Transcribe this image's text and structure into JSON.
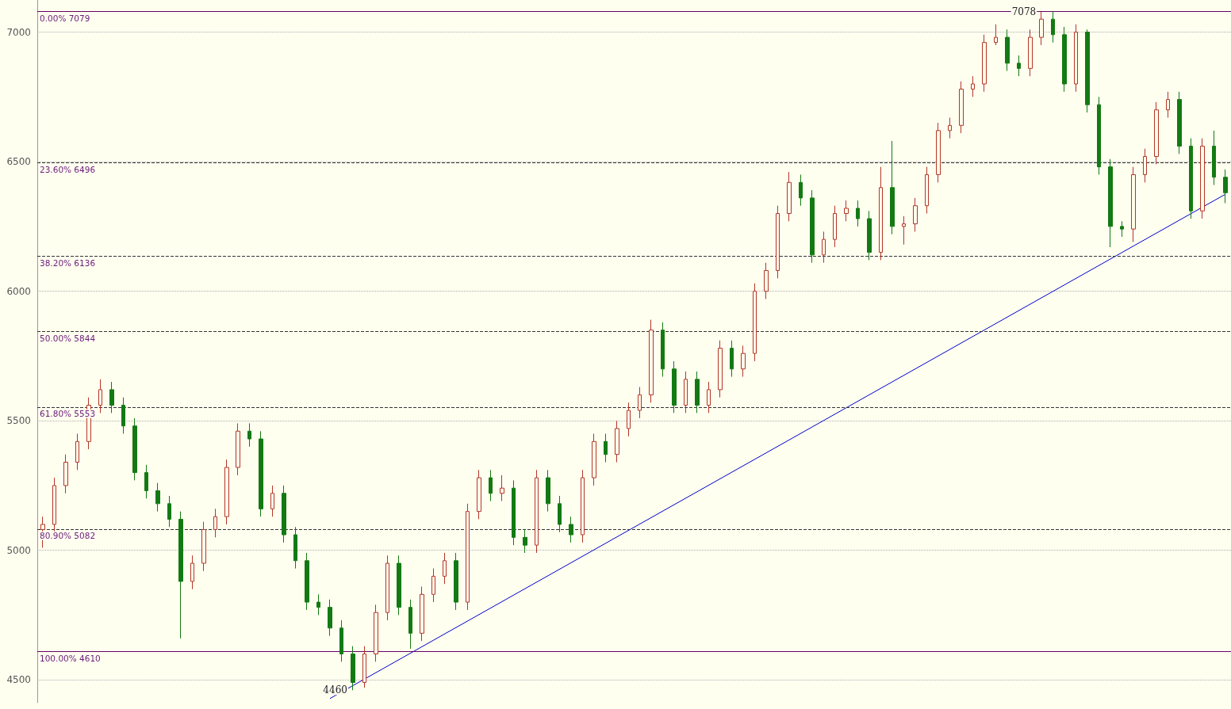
{
  "chart_data": {
    "type": "candlestick",
    "categories": [
      null,
      null,
      null,
      null,
      null,
      null,
      null,
      null,
      null,
      null,
      null,
      null,
      null,
      null,
      null,
      null,
      null,
      null,
      null,
      null,
      null,
      null,
      null,
      null,
      null,
      null,
      null,
      null,
      null,
      null,
      null,
      null,
      null,
      null,
      null,
      null,
      null,
      null,
      null,
      null,
      null,
      null,
      null,
      null,
      null,
      null,
      null,
      null,
      null,
      null,
      null,
      null,
      null,
      null,
      null,
      null,
      null,
      null,
      null,
      null,
      null,
      null,
      null,
      null,
      null,
      null,
      null,
      null,
      null,
      null,
      null,
      null,
      null,
      null,
      null,
      null,
      null,
      null,
      null,
      null,
      null,
      null,
      null,
      null,
      null,
      null,
      null,
      null,
      null,
      null,
      null,
      null,
      null,
      null,
      null,
      null,
      null,
      null,
      null,
      null,
      null,
      null,
      null,
      null
    ],
    "ohlc": [
      [
        5080,
        5130,
        5010,
        5100
      ],
      [
        5100,
        5280,
        5070,
        5250
      ],
      [
        5250,
        5370,
        5220,
        5340
      ],
      [
        5340,
        5450,
        5310,
        5420
      ],
      [
        5420,
        5590,
        5390,
        5560
      ],
      [
        5560,
        5660,
        5530,
        5620
      ],
      [
        5620,
        5650,
        5530,
        5560
      ],
      [
        5560,
        5590,
        5450,
        5480
      ],
      [
        5480,
        5510,
        5270,
        5300
      ],
      [
        5300,
        5330,
        5200,
        5230
      ],
      [
        5230,
        5260,
        5150,
        5180
      ],
      [
        5180,
        5210,
        5090,
        5120
      ],
      [
        5120,
        5150,
        4660,
        4880
      ],
      [
        4880,
        4980,
        4850,
        4950
      ],
      [
        4950,
        5110,
        4920,
        5080
      ],
      [
        5080,
        5160,
        5050,
        5130
      ],
      [
        5130,
        5350,
        5100,
        5320
      ],
      [
        5320,
        5490,
        5290,
        5460
      ],
      [
        5460,
        5490,
        5400,
        5430
      ],
      [
        5430,
        5460,
        5130,
        5160
      ],
      [
        5160,
        5250,
        5130,
        5220
      ],
      [
        5220,
        5250,
        5030,
        5060
      ],
      [
        5060,
        5090,
        4930,
        4960
      ],
      [
        4960,
        4990,
        4770,
        4800
      ],
      [
        4800,
        4830,
        4750,
        4780
      ],
      [
        4780,
        4810,
        4670,
        4700
      ],
      [
        4700,
        4730,
        4570,
        4600
      ],
      [
        4600,
        4630,
        4460,
        4490
      ],
      [
        4490,
        4630,
        4470,
        4600
      ],
      [
        4600,
        4790,
        4570,
        4760
      ],
      [
        4760,
        4980,
        4730,
        4950
      ],
      [
        4950,
        4980,
        4750,
        4780
      ],
      [
        4780,
        4810,
        4620,
        4680
      ],
      [
        4680,
        4860,
        4650,
        4830
      ],
      [
        4830,
        4930,
        4800,
        4900
      ],
      [
        4900,
        4990,
        4870,
        4960
      ],
      [
        4960,
        4990,
        4770,
        4800
      ],
      [
        4800,
        5180,
        4770,
        5150
      ],
      [
        5150,
        5310,
        5120,
        5280
      ],
      [
        5280,
        5310,
        5190,
        5220
      ],
      [
        5220,
        5290,
        5190,
        5240
      ],
      [
        5240,
        5270,
        5020,
        5050
      ],
      [
        5050,
        5080,
        4990,
        5020
      ],
      [
        5020,
        5310,
        4990,
        5280
      ],
      [
        5280,
        5310,
        5150,
        5180
      ],
      [
        5180,
        5210,
        5070,
        5100
      ],
      [
        5100,
        5130,
        5030,
        5060
      ],
      [
        5060,
        5310,
        5030,
        5280
      ],
      [
        5280,
        5450,
        5250,
        5420
      ],
      [
        5420,
        5450,
        5340,
        5370
      ],
      [
        5370,
        5500,
        5340,
        5470
      ],
      [
        5470,
        5570,
        5440,
        5540
      ],
      [
        5540,
        5630,
        5510,
        5600
      ],
      [
        5600,
        5890,
        5570,
        5850
      ],
      [
        5850,
        5880,
        5670,
        5700
      ],
      [
        5700,
        5730,
        5530,
        5560
      ],
      [
        5560,
        5690,
        5530,
        5660
      ],
      [
        5660,
        5690,
        5530,
        5560
      ],
      [
        5560,
        5650,
        5530,
        5620
      ],
      [
        5620,
        5810,
        5590,
        5780
      ],
      [
        5780,
        5810,
        5670,
        5700
      ],
      [
        5700,
        5790,
        5670,
        5760
      ],
      [
        5760,
        6030,
        5730,
        6000
      ],
      [
        6000,
        6110,
        5970,
        6080
      ],
      [
        6080,
        6330,
        6050,
        6300
      ],
      [
        6300,
        6460,
        6270,
        6420
      ],
      [
        6420,
        6450,
        6330,
        6360
      ],
      [
        6360,
        6390,
        6110,
        6140
      ],
      [
        6140,
        6230,
        6110,
        6200
      ],
      [
        6200,
        6330,
        6170,
        6300
      ],
      [
        6300,
        6350,
        6270,
        6320
      ],
      [
        6320,
        6350,
        6250,
        6280
      ],
      [
        6280,
        6310,
        6120,
        6150
      ],
      [
        6150,
        6480,
        6120,
        6400
      ],
      [
        6400,
        6580,
        6220,
        6250
      ],
      [
        6250,
        6290,
        6180,
        6260
      ],
      [
        6260,
        6360,
        6230,
        6330
      ],
      [
        6330,
        6480,
        6300,
        6450
      ],
      [
        6450,
        6650,
        6420,
        6620
      ],
      [
        6620,
        6670,
        6590,
        6640
      ],
      [
        6640,
        6810,
        6610,
        6780
      ],
      [
        6780,
        6830,
        6750,
        6800
      ],
      [
        6800,
        6990,
        6770,
        6960
      ],
      [
        6960,
        7030,
        6950,
        6980
      ],
      [
        6980,
        7010,
        6850,
        6880
      ],
      [
        6880,
        6910,
        6830,
        6860
      ],
      [
        6860,
        7010,
        6830,
        6980
      ],
      [
        6980,
        7078,
        6950,
        7050
      ],
      [
        7050,
        7080,
        6960,
        6990
      ],
      [
        6990,
        7020,
        6770,
        6800
      ],
      [
        6800,
        7030,
        6770,
        7000
      ],
      [
        7000,
        7010,
        6690,
        6720
      ],
      [
        6720,
        6750,
        6450,
        6480
      ],
      [
        6480,
        6510,
        6170,
        6250
      ],
      [
        6250,
        6270,
        6210,
        6240
      ],
      [
        6240,
        6480,
        6190,
        6450
      ],
      [
        6450,
        6550,
        6420,
        6520
      ],
      [
        6520,
        6730,
        6490,
        6700
      ],
      [
        6700,
        6770,
        6670,
        6740
      ],
      [
        6740,
        6770,
        6530,
        6560
      ],
      [
        6560,
        6590,
        6280,
        6310
      ],
      [
        6310,
        6590,
        6280,
        6560
      ],
      [
        6560,
        6620,
        6410,
        6440
      ],
      [
        6440,
        6470,
        6340,
        6380
      ]
    ],
    "series": [
      {
        "type": "line",
        "values": [
          null,
          null,
          null,
          null,
          null,
          null,
          null,
          null,
          null,
          null,
          null,
          null,
          null,
          null,
          null,
          null,
          null,
          null,
          null,
          null,
          null,
          null,
          null,
          null,
          null,
          4428,
          null,
          null,
          null,
          null,
          null,
          null,
          null,
          null,
          null,
          null,
          null,
          null,
          null,
          null,
          null,
          null,
          null,
          null,
          null,
          null,
          null,
          null,
          null,
          null,
          null,
          null,
          null,
          null,
          null,
          null,
          null,
          null,
          null,
          null,
          null,
          null,
          null,
          null,
          null,
          null,
          null,
          null,
          null,
          null,
          null,
          null,
          null,
          null,
          null,
          null,
          null,
          null,
          null,
          null,
          null,
          null,
          null,
          null,
          null,
          null,
          null,
          null,
          null,
          null,
          null,
          null,
          null,
          null,
          null,
          null,
          null,
          null,
          null,
          null,
          null,
          null,
          null,
          6374
        ],
        "color": "#0000cc"
      }
    ],
    "ylim": [
      4412,
      7124
    ],
    "yticks": [
      4500,
      5000,
      5500,
      6000,
      6500,
      7000
    ],
    "grid": "y",
    "ref_lines": [
      {
        "axis": "y",
        "value": 7079,
        "label": "0.00% 7079",
        "color": "#660066",
        "line_style": "solid"
      },
      {
        "axis": "y",
        "value": 6496,
        "label": "23.60% 6496",
        "color": "#333333",
        "line_style": "dashed"
      },
      {
        "axis": "y",
        "value": 6136,
        "label": "38.20% 6136",
        "color": "#333333",
        "line_style": "dashed"
      },
      {
        "axis": "y",
        "value": 5844,
        "label": "50.00% 5844",
        "color": "#333333",
        "line_style": "dashed"
      },
      {
        "axis": "y",
        "value": 5553,
        "label": "61.80% 5553",
        "color": "#333333",
        "line_style": "dashed"
      },
      {
        "axis": "y",
        "value": 5082,
        "label": "80.90% 5082",
        "color": "#333333",
        "line_style": "dashed"
      },
      {
        "axis": "y",
        "value": 4610,
        "label": "100.00% 4610",
        "color": "#660066",
        "line_style": "solid"
      }
    ],
    "annotations": [
      {
        "text": "7078",
        "y": 7078
      },
      {
        "text": "4460",
        "y": 4460
      }
    ]
  }
}
